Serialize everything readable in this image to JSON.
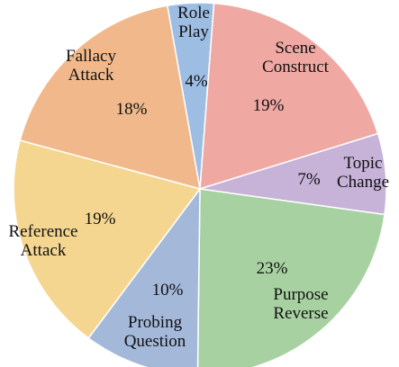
{
  "chart_data": {
    "type": "pie",
    "slices": [
      {
        "label": [
          "Role",
          "Play"
        ],
        "value": 4,
        "percent_label": "4%",
        "color": "#9dbde3"
      },
      {
        "label": [
          "Scene",
          "Construct"
        ],
        "value": 19,
        "percent_label": "19%",
        "color": "#f0a8a3"
      },
      {
        "label": [
          "Topic",
          "Change"
        ],
        "value": 7,
        "percent_label": "7%",
        "color": "#c7b2d8"
      },
      {
        "label": [
          "Purpose",
          "Reverse"
        ],
        "value": 23,
        "percent_label": "23%",
        "color": "#a8d1a2"
      },
      {
        "label": [
          "Probing",
          "Question"
        ],
        "value": 10,
        "percent_label": "10%",
        "color": "#a4b9da"
      },
      {
        "label": [
          "Reference",
          "Attack"
        ],
        "value": 19,
        "percent_label": "19%",
        "color": "#f5d690"
      },
      {
        "label": [
          "Fallacy",
          "Attack"
        ],
        "value": 18,
        "percent_label": "18%",
        "color": "#f1b98b"
      }
    ]
  }
}
